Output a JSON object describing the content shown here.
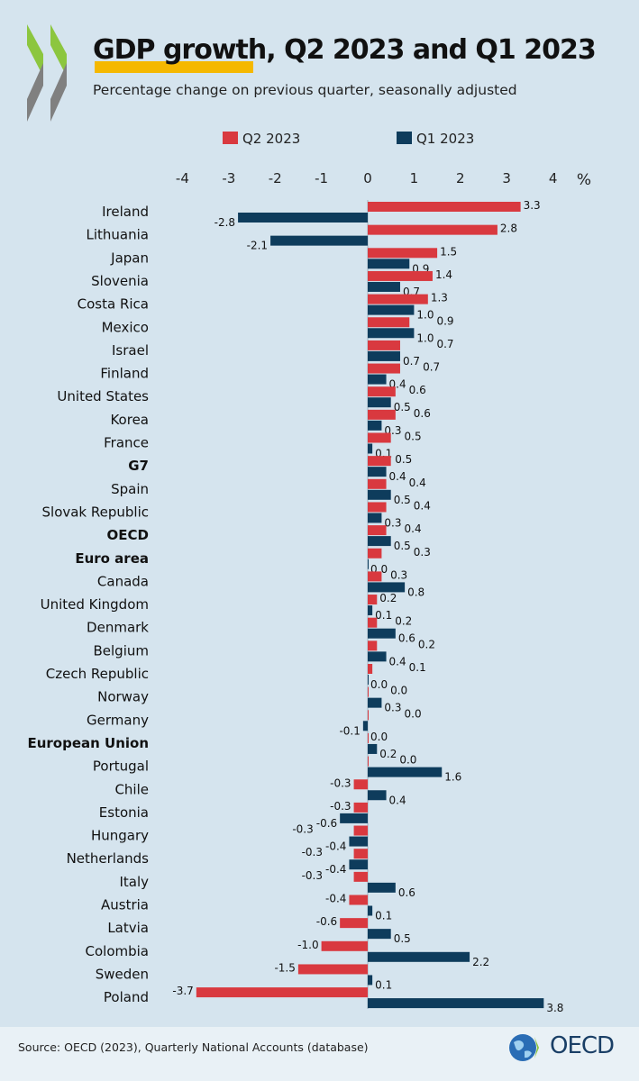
{
  "header": {
    "title": "GDP growth, Q2 2023 and Q1 2023",
    "subtitle": "Percentage change on previous quarter, seasonally adjusted"
  },
  "footer": {
    "source": "Source: OECD (2023), Quarterly National Accounts (database)",
    "logo_text": "OECD"
  },
  "colors": {
    "q2": "#d9393f",
    "q1": "#0e3c5c",
    "background": "#d5e4ee",
    "highlight": "#f5b800"
  },
  "chart_data": {
    "type": "bar",
    "orientation": "horizontal",
    "title": "GDP growth, Q2 2023 and Q1 2023",
    "subtitle": "Percentage change on previous quarter, seasonally adjusted",
    "xlabel": "%",
    "xlim": [
      -4,
      4
    ],
    "xticks": [
      -4,
      -3,
      -2,
      -1,
      0,
      1,
      2,
      3,
      4
    ],
    "legend_position": "top",
    "grid": false,
    "categories": [
      "Ireland",
      "Lithuania",
      "Japan",
      "Slovenia",
      "Costa Rica",
      "Mexico",
      "Israel",
      "Finland",
      "United States",
      "Korea",
      "France",
      "G7",
      "Spain",
      "Slovak Republic",
      "OECD",
      "Euro area",
      "Canada",
      "United Kingdom",
      "Denmark",
      "Belgium",
      "Czech Republic",
      "Norway",
      "Germany",
      "European Union",
      "Portugal",
      "Chile",
      "Estonia",
      "Hungary",
      "Netherlands",
      "Italy",
      "Austria",
      "Latvia",
      "Colombia",
      "Sweden",
      "Poland"
    ],
    "bold_categories": [
      "G7",
      "OECD",
      "Euro area",
      "European Union"
    ],
    "series": [
      {
        "name": "Q2 2023",
        "values": [
          3.3,
          2.8,
          1.5,
          1.4,
          1.3,
          0.9,
          0.7,
          0.7,
          0.6,
          0.6,
          0.5,
          0.5,
          0.4,
          0.4,
          0.4,
          0.3,
          0.3,
          0.2,
          0.2,
          0.2,
          0.1,
          0.0,
          0.0,
          0.0,
          0.0,
          -0.3,
          -0.3,
          -0.3,
          -0.3,
          -0.3,
          -0.4,
          -0.6,
          -1.0,
          -1.5,
          -3.7
        ]
      },
      {
        "name": "Q1 2023",
        "values": [
          -2.8,
          -2.1,
          0.9,
          0.7,
          1.0,
          1.0,
          0.7,
          0.4,
          0.5,
          0.3,
          0.1,
          0.4,
          0.5,
          0.3,
          0.5,
          0.0,
          0.8,
          0.1,
          0.6,
          0.4,
          0.0,
          0.3,
          -0.1,
          0.2,
          1.6,
          0.4,
          -0.6,
          -0.4,
          -0.4,
          0.6,
          0.1,
          0.5,
          2.2,
          0.1,
          3.8
        ]
      }
    ]
  }
}
